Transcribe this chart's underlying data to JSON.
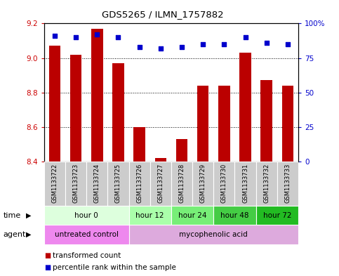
{
  "title": "GDS5265 / ILMN_1757882",
  "samples": [
    "GSM1133722",
    "GSM1133723",
    "GSM1133724",
    "GSM1133725",
    "GSM1133726",
    "GSM1133727",
    "GSM1133728",
    "GSM1133729",
    "GSM1133730",
    "GSM1133731",
    "GSM1133732",
    "GSM1133733"
  ],
  "bar_values": [
    9.07,
    9.02,
    9.17,
    8.97,
    8.6,
    8.42,
    8.53,
    8.84,
    8.84,
    9.03,
    8.87,
    8.84
  ],
  "percentile_values": [
    91,
    90,
    92,
    90,
    83,
    82,
    83,
    85,
    85,
    90,
    86,
    85
  ],
  "bar_bottom": 8.4,
  "ylim_left": [
    8.4,
    9.2
  ],
  "ylim_right": [
    0,
    100
  ],
  "yticks_left": [
    8.4,
    8.6,
    8.8,
    9.0,
    9.2
  ],
  "ytick_labels_right": [
    "0",
    "25",
    "50",
    "75",
    "100%"
  ],
  "yticks_right": [
    0,
    25,
    50,
    75,
    100
  ],
  "bar_color": "#bb0000",
  "dot_color": "#0000cc",
  "grid_color": "#000000",
  "time_groups": [
    {
      "label": "hour 0",
      "start": 0,
      "end": 4,
      "color": "#ddffdd"
    },
    {
      "label": "hour 12",
      "start": 4,
      "end": 6,
      "color": "#aaffaa"
    },
    {
      "label": "hour 24",
      "start": 6,
      "end": 8,
      "color": "#77ee77"
    },
    {
      "label": "hour 48",
      "start": 8,
      "end": 10,
      "color": "#44cc44"
    },
    {
      "label": "hour 72",
      "start": 10,
      "end": 12,
      "color": "#22bb22"
    }
  ],
  "agent_groups": [
    {
      "label": "untreated control",
      "start": 0,
      "end": 4,
      "color": "#ee88ee"
    },
    {
      "label": "mycophenolic acid",
      "start": 4,
      "end": 12,
      "color": "#ddaadd"
    }
  ],
  "legend_items": [
    {
      "label": "transformed count",
      "color": "#bb0000"
    },
    {
      "label": "percentile rank within the sample",
      "color": "#0000cc"
    }
  ],
  "background_color": "#ffffff",
  "plot_bg_color": "#ffffff",
  "tick_label_color_left": "#cc0000",
  "tick_label_color_right": "#0000cc",
  "sample_bg_color": "#cccccc",
  "sample_border_color": "#aaaaaa"
}
